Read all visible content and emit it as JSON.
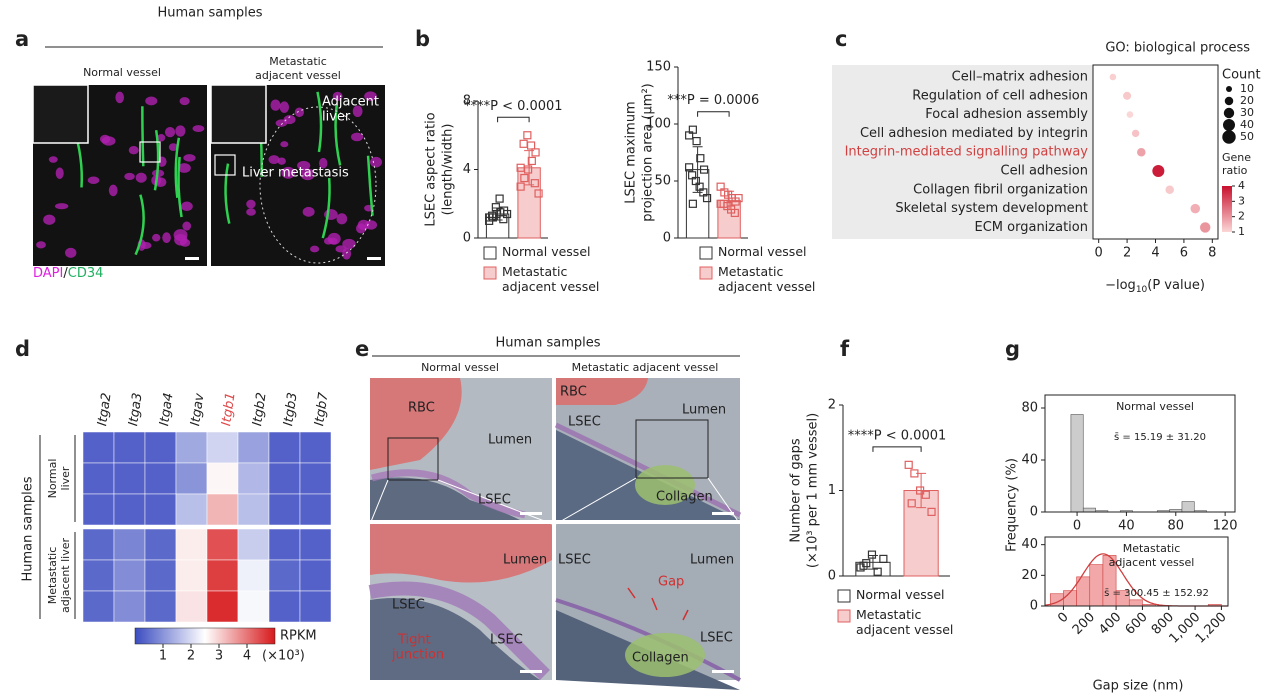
{
  "panel_a": {
    "letter": "a",
    "title": "Human samples",
    "left_label": "Normal vessel",
    "right_label": [
      "Metastatic",
      "adjacent vessel"
    ],
    "image_labels": {
      "adjacent": [
        "Adjacent",
        "liver"
      ],
      "metastasis": "Liver metastasis"
    },
    "stain": [
      {
        "text": "DAPI",
        "color": "#e020e0"
      },
      {
        "text": "/",
        "color": "#222222"
      },
      {
        "text": "CD34",
        "color": "#20b060"
      }
    ]
  },
  "panel_b": {
    "letter": "b",
    "charts": [
      {
        "ylabel": [
          "LSEC aspect ratio",
          "(length/width)"
        ],
        "ylim": [
          0,
          8
        ],
        "yticks": [
          0,
          4,
          8
        ],
        "significance": "****P < 0.0001",
        "series": [
          {
            "name": "Normal vessel",
            "fill": "#ffffff",
            "stroke": "#333333",
            "mean": 1.4,
            "error": 0.35,
            "points": [
              1.0,
              1.2,
              1.4,
              1.5,
              1.6,
              1.3,
              1.8,
              2.3,
              1.1,
              1.4,
              1.2
            ]
          },
          {
            "name": "Metastatic adjacent vessel",
            "fill": "#f6cccc",
            "stroke": "#e06060",
            "mean": 4.1,
            "error": 1.0,
            "points": [
              3.0,
              3.5,
              4.0,
              4.5,
              5.0,
              5.5,
              6.0,
              5.4,
              3.2,
              2.6,
              4.1
            ]
          }
        ]
      },
      {
        "ylabel": [
          "LSEC maximum",
          "projection area (μm²)"
        ],
        "ylim": [
          0,
          150
        ],
        "yticks": [
          0,
          50,
          100,
          150
        ],
        "significance": "***P = 0.0006",
        "series": [
          {
            "name": "Normal vessel",
            "fill": "#ffffff",
            "stroke": "#333333",
            "mean": 60,
            "error": 20,
            "points": [
              90,
              95,
              85,
              70,
              60,
              55,
              50,
              45,
              40,
              35,
              62,
              30
            ]
          },
          {
            "name": "Metastatic adjacent vessel",
            "fill": "#f6cccc",
            "stroke": "#e06060",
            "mean": 33,
            "error": 8,
            "points": [
              45,
              40,
              38,
              35,
              32,
              30,
              28,
              25,
              22,
              35,
              30
            ]
          }
        ]
      }
    ]
  },
  "panel_c": {
    "letter": "c",
    "title": "GO: biological process",
    "xlabel": {
      "main": "−log",
      "sub": "10",
      "rest": "(P value)"
    },
    "xlim": [
      -0.4,
      8.4
    ],
    "xticks": [
      0,
      2,
      4,
      6,
      8
    ],
    "rows": [
      {
        "term": "Cell–matrix adhesion",
        "x": 1.0,
        "count": 12,
        "ratio": 1.1
      },
      {
        "term": "Regulation of cell adhesion",
        "x": 2.0,
        "count": 18,
        "ratio": 1.2
      },
      {
        "term": "Focal adhesion assembly",
        "x": 2.2,
        "count": 12,
        "ratio": 1.0
      },
      {
        "term": "Cell adhesion mediated by integrin",
        "x": 2.6,
        "count": 15,
        "ratio": 1.3
      },
      {
        "term": "Integrin-mediated signalling pathway",
        "x": 3.0,
        "count": 20,
        "ratio": 1.8,
        "color": "#d04040"
      },
      {
        "term": "Cell adhesion",
        "x": 4.2,
        "count": 40,
        "ratio": 3.8
      },
      {
        "term": "Collagen fibril organization",
        "x": 5.0,
        "count": 20,
        "ratio": 1.2
      },
      {
        "term": "Skeletal system development",
        "x": 6.8,
        "count": 25,
        "ratio": 1.6
      },
      {
        "term": "ECM organization",
        "x": 7.5,
        "count": 30,
        "ratio": 2.0
      }
    ],
    "count_legend": {
      "title": "Count",
      "values": [
        10,
        20,
        30,
        40,
        50
      ]
    },
    "ratio_legend": {
      "title": [
        "Gene",
        "ratio"
      ],
      "range": [
        1,
        4
      ],
      "ticks": [
        1,
        2,
        3,
        4
      ],
      "colors": [
        "#c8102e",
        "#fbd6d6"
      ]
    }
  },
  "panel_d": {
    "letter": "d",
    "side_label": "Human samples",
    "columns": [
      {
        "name": "Itga2"
      },
      {
        "name": "Itga3"
      },
      {
        "name": "Itga4"
      },
      {
        "name": "Itgav"
      },
      {
        "name": "Itgb1",
        "color": "#e04848"
      },
      {
        "name": "Itgb2"
      },
      {
        "name": "Itgb3"
      },
      {
        "name": "Itgb7"
      }
    ],
    "groups": [
      {
        "label": [
          "Normal",
          "liver"
        ],
        "values": [
          [
            0.3,
            0.3,
            0.3,
            1.3,
            1.9,
            1.2,
            0.3,
            0.3
          ],
          [
            0.3,
            0.3,
            0.3,
            1.0,
            2.6,
            1.5,
            0.3,
            0.3
          ],
          [
            0.3,
            0.3,
            0.3,
            1.6,
            3.3,
            1.6,
            0.3,
            0.3
          ]
        ]
      },
      {
        "label": [
          "Metastatic",
          "adjacent liver"
        ],
        "values": [
          [
            0.4,
            0.8,
            0.4,
            2.7,
            4.4,
            1.8,
            0.3,
            0.3
          ],
          [
            0.4,
            0.9,
            0.4,
            2.7,
            4.6,
            2.3,
            0.4,
            0.3
          ],
          [
            0.4,
            0.9,
            0.4,
            2.8,
            4.8,
            2.4,
            0.3,
            0.3
          ]
        ]
      }
    ],
    "colorbar": {
      "label": "RPKM",
      "unit": "(×10³)",
      "range": [
        0,
        5
      ],
      "ticks": [
        1,
        2,
        3,
        4
      ],
      "colors": [
        "#3b4cc0",
        "#ffffff",
        "#d7191c"
      ]
    }
  },
  "panel_e": {
    "letter": "e",
    "title": "Human samples",
    "left_label": "Normal vessel",
    "right_label": "Metastatic adjacent vessel",
    "labels": [
      "RBC",
      "Lumen",
      "LSEC",
      "RBC",
      "Lumen",
      "LSEC",
      "Collagen",
      "Lumen",
      "LSEC",
      "LSEC",
      "Tight",
      "junction",
      "LSEC",
      "Lumen",
      "Gap",
      "LSEC",
      "Collagen"
    ]
  },
  "panel_f": {
    "letter": "f",
    "charts": [
      {
        "ylabel": [
          "Number of gaps",
          "(×10³ per 1 mm vessel)"
        ],
        "ylim": [
          0,
          2
        ],
        "yticks": [
          0,
          1,
          2
        ],
        "significance": "****P < 0.0001",
        "series": [
          {
            "name": "Normal vessel",
            "fill": "#ffffff",
            "stroke": "#333333",
            "mean": 0.16,
            "error": 0.08,
            "points": [
              0.1,
              0.15,
              0.25,
              0.05,
              0.2,
              0.12
            ]
          },
          {
            "name": "Metastatic adjacent vessel",
            "fill": "#f6cccc",
            "stroke": "#e06060",
            "mean": 1.0,
            "error": 0.2,
            "points": [
              1.3,
              1.2,
              1.0,
              0.95,
              0.75,
              0.85
            ]
          }
        ]
      }
    ]
  },
  "panel_g": {
    "letter": "g",
    "ylabel": "Frequency (%)",
    "xlabel": "Gap size (nm)",
    "charts": [
      {
        "title": [
          "Normal vessel"
        ],
        "annotation": "s̄ = 15.19 ± 31.20",
        "xlim": [
          -26,
          128
        ],
        "xticks": [
          0,
          40,
          80,
          120
        ],
        "ylim": [
          0,
          90
        ],
        "yticks": [
          0,
          40,
          80
        ],
        "bins": [
          -5,
          5,
          15,
          25,
          35,
          45,
          55,
          65,
          75,
          85,
          95,
          105
        ],
        "counts": [
          75,
          3,
          1,
          0,
          1,
          0,
          0,
          1,
          2,
          8,
          1
        ],
        "color": "#cccccc",
        "stroke": "#555555"
      },
      {
        "title": [
          "Metastatic",
          "adjacent vessel"
        ],
        "annotation": "s̄ = 300.45 ± 152.92",
        "xlim": [
          -140,
          1250
        ],
        "xticks": [
          0,
          200,
          400,
          600,
          800,
          {
            "value": 1000,
            "label": "1,000"
          },
          {
            "value": 1200,
            "label": "1,200"
          }
        ],
        "rotate_xticks": true,
        "ylim": [
          0,
          45
        ],
        "yticks": [
          0,
          20,
          40
        ],
        "bins": [
          -100,
          0,
          100,
          200,
          300,
          400,
          500,
          600,
          700,
          800,
          900,
          1000,
          1100,
          1200
        ],
        "counts": [
          8,
          10,
          19,
          27,
          33,
          10,
          4,
          1,
          0,
          0,
          0,
          0,
          1
        ],
        "color": "#f2a8a8",
        "stroke": "#d04040",
        "fit": {
          "mean": 300.45,
          "sd": 152.92,
          "peak": 34
        }
      }
    ]
  }
}
